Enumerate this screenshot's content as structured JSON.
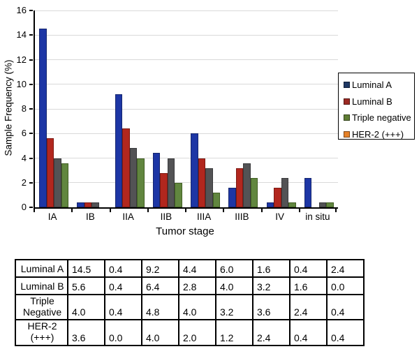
{
  "chart_data": {
    "type": "bar",
    "title": "",
    "xlabel": "Tumor stage",
    "ylabel": "Sample Frequency (%)",
    "ylim": [
      0,
      16
    ],
    "yticks": [
      0,
      2,
      4,
      6,
      8,
      10,
      12,
      14,
      16
    ],
    "grid": "horizontal",
    "grid_color": "#d9d9d9",
    "axis_color": "#000000",
    "legend_position": "right-outside",
    "categories": [
      "IA",
      "IB",
      "IIA",
      "IIB",
      "IIIA",
      "IIIB",
      "IV",
      "in situ"
    ],
    "series": [
      {
        "name": "Luminal A",
        "bar_color": "#1d36a5",
        "bar_border_color": "#15266e",
        "legend_color": "#1f3864",
        "values": [
          14.5,
          0.4,
          9.2,
          4.4,
          6.0,
          1.6,
          0.4,
          2.4
        ]
      },
      {
        "name": "Luminal B",
        "bar_color": "#b2271e",
        "bar_border_color": "#7e1a13",
        "legend_color": "#9c2a23",
        "values": [
          5.6,
          0.4,
          6.4,
          2.8,
          4.0,
          3.2,
          1.6,
          0.0
        ]
      },
      {
        "name": "Triple negative",
        "bar_color": "#535355",
        "bar_border_color": "#3a3a3c",
        "legend_color": "#5f7d34",
        "values": [
          4.0,
          0.4,
          4.8,
          4.0,
          3.2,
          3.6,
          2.4,
          0.4
        ]
      },
      {
        "name": "HER-2 (+++)",
        "bar_color": "#61863f",
        "bar_border_color": "#425f24",
        "legend_color": "#e58128",
        "values": [
          3.6,
          0.0,
          4.0,
          2.0,
          1.2,
          2.4,
          0.4,
          0.4
        ]
      }
    ]
  },
  "table": {
    "rows": [
      {
        "label": "Luminal A",
        "tall": false,
        "values": [
          "14.5",
          "0.4",
          "9.2",
          "4.4",
          "6.0",
          "1.6",
          "0.4",
          "2.4"
        ]
      },
      {
        "label": "Luminal B",
        "tall": false,
        "values": [
          "5.6",
          "0.4",
          "6.4",
          "2.8",
          "4.0",
          "3.2",
          "1.6",
          "0.0"
        ]
      },
      {
        "label": "Triple\nNegative",
        "tall": true,
        "values": [
          "4.0",
          "0.4",
          "4.8",
          "4.0",
          "3.2",
          "3.6",
          "2.4",
          "0.4"
        ]
      },
      {
        "label": "HER-2\n(+++)",
        "tall": true,
        "values": [
          "3.6",
          "0.0",
          "4.0",
          "2.0",
          "1.2",
          "2.4",
          "0.4",
          "0.4"
        ]
      }
    ]
  }
}
